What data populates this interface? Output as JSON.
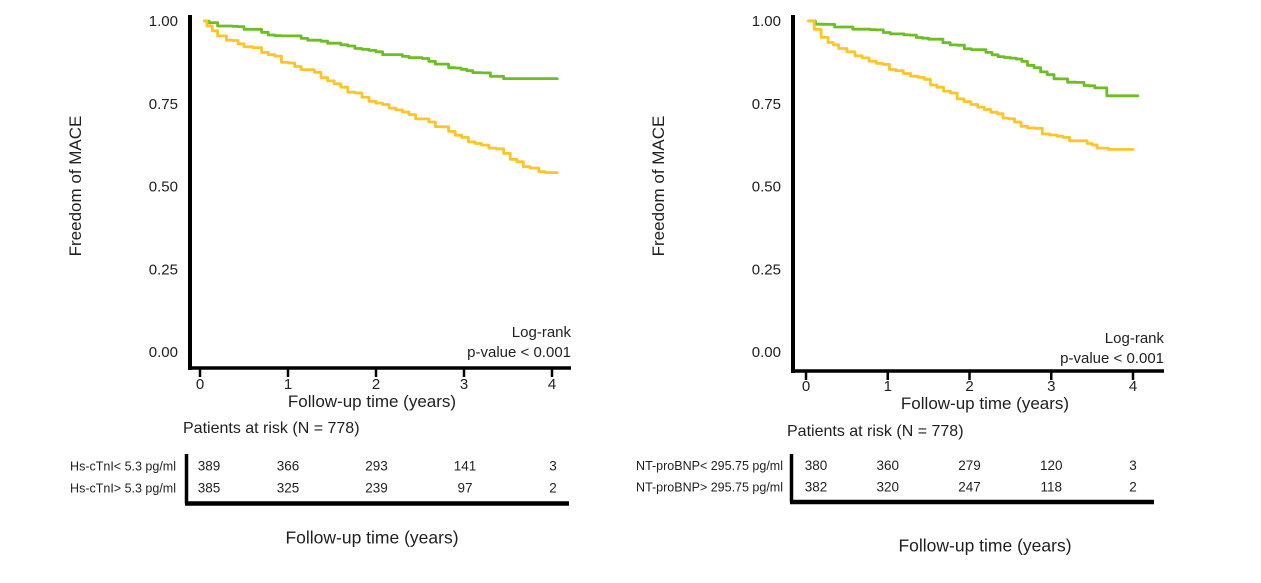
{
  "chart_data": [
    {
      "type": "line",
      "subtype": "kaplan-meier",
      "panel": "left",
      "ylabel": "Freedom of MACE",
      "xlabel": "Follow-up time (years)",
      "bottom_label": "Follow-up time (years)",
      "patients_at_risk_title": "Patients at risk (N = 778)",
      "annotation": [
        "Log-rank",
        "p-value < 0.001"
      ],
      "xticks": [
        "0",
        "1",
        "2",
        "3",
        "4"
      ],
      "yticks": [
        {
          "label": "1.00",
          "value": 1.0
        },
        {
          "label": "0.75",
          "value": 0.75
        },
        {
          "label": "0.50",
          "value": 0.5
        },
        {
          "label": "0.25",
          "value": 0.25
        },
        {
          "label": "0.00",
          "value": 0.0
        }
      ],
      "xlim": [
        0,
        4.1
      ],
      "ylim": [
        0,
        1
      ],
      "grid": false,
      "series": [
        {
          "name": "Hs-cTnI< 5.3 pg/ml",
          "color": "#6cbe23",
          "points": [
            [
              0.05,
              1.0
            ],
            [
              0.1,
              0.995
            ],
            [
              0.3,
              0.985
            ],
            [
              0.5,
              0.975
            ],
            [
              0.7,
              0.966
            ],
            [
              1.0,
              0.955
            ],
            [
              1.3,
              0.942
            ],
            [
              1.6,
              0.928
            ],
            [
              2.0,
              0.907
            ],
            [
              2.3,
              0.893
            ],
            [
              2.6,
              0.878
            ],
            [
              2.9,
              0.858
            ],
            [
              3.1,
              0.844
            ],
            [
              3.3,
              0.833
            ],
            [
              3.45,
              0.826
            ],
            [
              4.06,
              0.826
            ]
          ]
        },
        {
          "name": "Hs-cTnI> 5.3 pg/ml",
          "color": "#fec42b",
          "points": [
            [
              0.05,
              1.0
            ],
            [
              0.08,
              0.985
            ],
            [
              0.2,
              0.955
            ],
            [
              0.3,
              0.942
            ],
            [
              0.5,
              0.922
            ],
            [
              0.7,
              0.905
            ],
            [
              1.0,
              0.873
            ],
            [
              1.3,
              0.845
            ],
            [
              1.6,
              0.8
            ],
            [
              2.0,
              0.752
            ],
            [
              2.3,
              0.725
            ],
            [
              2.6,
              0.695
            ],
            [
              2.9,
              0.655
            ],
            [
              3.2,
              0.625
            ],
            [
              3.45,
              0.6
            ],
            [
              3.6,
              0.575
            ],
            [
              3.75,
              0.556
            ],
            [
              3.85,
              0.545
            ],
            [
              4.06,
              0.542
            ]
          ]
        }
      ],
      "risk_table": [
        {
          "label": "Hs-cTnI< 5.3 pg/ml",
          "color": "#58ae2a",
          "counts": [
            "389",
            "366",
            "293",
            "141",
            "3"
          ]
        },
        {
          "label": "Hs-cTnI> 5.3 pg/ml",
          "color": "#f8bd2a",
          "counts": [
            "385",
            "325",
            "239",
            "97",
            "2"
          ]
        }
      ]
    },
    {
      "type": "line",
      "subtype": "kaplan-meier",
      "panel": "right",
      "ylabel": "Freedom of MACE",
      "xlabel": "Follow-up time (years)",
      "bottom_label": "Follow-up time (years)",
      "patients_at_risk_title": "Patients at risk (N = 778)",
      "annotation": [
        "Log-rank",
        "p-value < 0.001"
      ],
      "xticks": [
        "0",
        "1",
        "2",
        "3",
        "4"
      ],
      "yticks": [
        {
          "label": "1.00",
          "value": 1.0
        },
        {
          "label": "0.75",
          "value": 0.75
        },
        {
          "label": "0.50",
          "value": 0.5
        },
        {
          "label": "0.25",
          "value": 0.25
        },
        {
          "label": "0.00",
          "value": 0.0
        }
      ],
      "xlim": [
        0,
        4.1
      ],
      "ylim": [
        0,
        1
      ],
      "grid": false,
      "series": [
        {
          "name": "NT-proBNP< 295.75 pg/ml",
          "color": "#6cbe23",
          "points": [
            [
              0.03,
              1.0
            ],
            [
              0.2,
              0.99
            ],
            [
              0.5,
              0.982
            ],
            [
              0.86,
              0.973
            ],
            [
              1.2,
              0.958
            ],
            [
              1.5,
              0.945
            ],
            [
              1.85,
              0.927
            ],
            [
              2.2,
              0.905
            ],
            [
              2.5,
              0.888
            ],
            [
              2.71,
              0.866
            ],
            [
              2.95,
              0.838
            ],
            [
              3.2,
              0.815
            ],
            [
              3.4,
              0.805
            ],
            [
              3.6,
              0.798
            ],
            [
              3.68,
              0.774
            ],
            [
              4.06,
              0.774
            ]
          ]
        },
        {
          "name": "NT-proBNP> 295.75 pg/ml",
          "color": "#fec42b",
          "points": [
            [
              0.03,
              1.0
            ],
            [
              0.1,
              0.975
            ],
            [
              0.27,
              0.935
            ],
            [
              0.4,
              0.917
            ],
            [
              0.6,
              0.895
            ],
            [
              0.86,
              0.872
            ],
            [
              1.1,
              0.85
            ],
            [
              1.37,
              0.83
            ],
            [
              1.6,
              0.8
            ],
            [
              1.85,
              0.765
            ],
            [
              2.1,
              0.74
            ],
            [
              2.34,
              0.72
            ],
            [
              2.55,
              0.695
            ],
            [
              2.71,
              0.677
            ],
            [
              3.07,
              0.652
            ],
            [
              3.3,
              0.638
            ],
            [
              3.44,
              0.63
            ],
            [
              3.56,
              0.616
            ],
            [
              3.7,
              0.612
            ],
            [
              4.0,
              0.612
            ]
          ]
        }
      ],
      "risk_table": [
        {
          "label": "NT-proBNP< 295.75 pg/ml",
          "color": "#58ae2a",
          "counts": [
            "380",
            "360",
            "279",
            "120",
            "3"
          ]
        },
        {
          "label": "NT-proBNP> 295.75 pg/ml",
          "color": "#f8bd2a",
          "counts": [
            "382",
            "320",
            "247",
            "118",
            "2"
          ]
        }
      ]
    }
  ]
}
